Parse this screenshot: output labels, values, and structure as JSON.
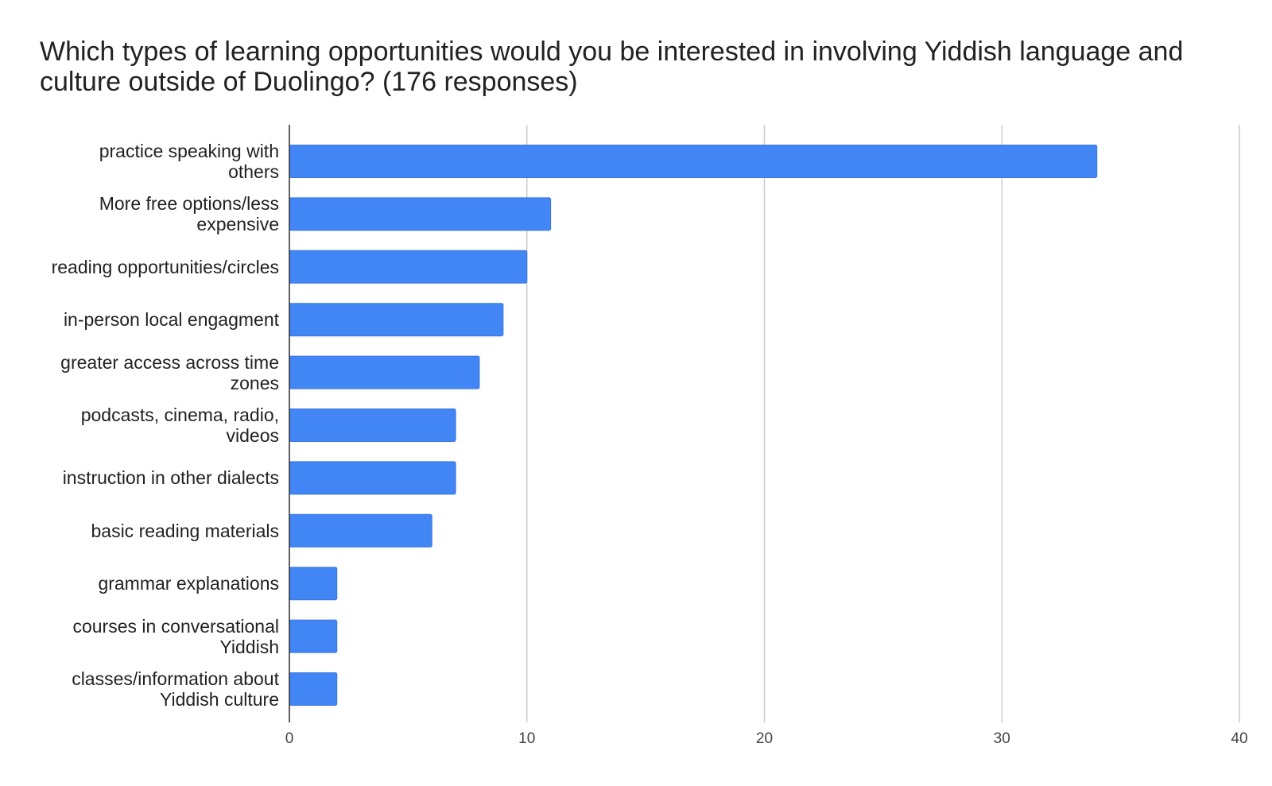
{
  "chart_data": {
    "type": "bar",
    "orientation": "horizontal",
    "title": "Which types of learning opportunities would you be interested in involving Yiddish language and culture outside of Duolingo? (176 responses)",
    "categories": [
      "practice speaking with others",
      "More free options/less expensive",
      "reading opportunities/circles",
      "in-person local engagment",
      "greater access across time zones",
      "podcasts, cinema, radio, videos",
      "instruction in other dialects",
      "basic reading materials",
      "grammar explanations",
      "courses in conversational Yiddish",
      "classes/information about Yiddish culture"
    ],
    "values": [
      34,
      11,
      10,
      9,
      8,
      7,
      7,
      6,
      2,
      2,
      2
    ],
    "color": "#4285f4",
    "xlim": [
      0,
      40
    ],
    "xticks": [
      0,
      10,
      20,
      30,
      40
    ],
    "grid": true
  }
}
